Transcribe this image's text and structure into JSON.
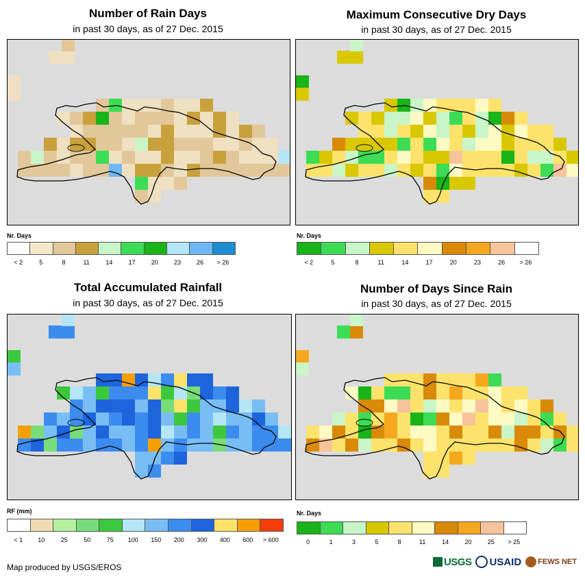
{
  "panels": [
    {
      "title": "Number of Rain Days",
      "subtitle": "in past 30 days, as of 27 Dec. 2015",
      "legend_title": "Nr. Days",
      "legend_colors": [
        "#ffffff",
        "#f5e6cc",
        "#e0c89a",
        "#c9a13c",
        "#c9f5c8",
        "#3cdc55",
        "#18b418",
        "#b4e6f5",
        "#6eb9f5",
        "#1e8cd2"
      ],
      "legend_labels": [
        "< 2",
        "5",
        "8",
        "11",
        "14",
        "17",
        "20",
        "23",
        "26",
        "> 26"
      ],
      "legend_label_mode": "center",
      "palette": [
        "#efe0c2",
        "#e2c79a",
        "#c9a13c",
        "#c9f5c8",
        "#3cdc55",
        "#18b418",
        "#b4e6f5",
        "#6eb9f5"
      ],
      "seed": 11,
      "weights": [
        40,
        35,
        10,
        3,
        4,
        2,
        2,
        2
      ]
    },
    {
      "title": "Maximum Consecutive Dry Days",
      "subtitle": "in past 30 days, as of 27 Dec. 2015",
      "legend_title": "Nr. Days",
      "legend_colors": [
        "#18b418",
        "#3cdc55",
        "#c9f5c8",
        "#d9c800",
        "#fde36b",
        "#fefac4",
        "#d98a08",
        "#f5a81e",
        "#f7c39c",
        "#ffffff"
      ],
      "legend_labels": [
        "< 2",
        "5",
        "8",
        "11",
        "14",
        "17",
        "20",
        "23",
        "26",
        "> 26"
      ],
      "legend_label_mode": "center",
      "palette": [
        "#d9c800",
        "#fde36b",
        "#fefac4",
        "#c9f5c8",
        "#3cdc55",
        "#18b418",
        "#d98a08",
        "#f7c39c"
      ],
      "seed": 23,
      "weights": [
        30,
        30,
        10,
        12,
        6,
        3,
        3,
        2
      ]
    },
    {
      "title": "Total Accumulated Rainfall",
      "subtitle": "in past 30 days, as of 27 Dec. 2015",
      "legend_title": "RF (mm)",
      "legend_colors": [
        "#ffffff",
        "#f0dcb4",
        "#b4f0a0",
        "#78dc78",
        "#3cc83c",
        "#b4e6f5",
        "#78bef5",
        "#3c8cf0",
        "#1e64dc",
        "#fde36b",
        "#f5a000",
        "#f53c0a"
      ],
      "legend_labels": [
        "< 1",
        "10",
        "25",
        "50",
        "75",
        "100",
        "150",
        "200",
        "300",
        "400",
        "600",
        "> 600"
      ],
      "legend_label_mode": "edge",
      "palette": [
        "#78bef5",
        "#3c8cf0",
        "#1e64dc",
        "#b4e6f5",
        "#3cc83c",
        "#78dc78",
        "#fde36b",
        "#f5a000"
      ],
      "seed": 37,
      "weights": [
        35,
        25,
        15,
        10,
        6,
        4,
        3,
        2
      ]
    },
    {
      "title": "Number of Days Since Rain",
      "subtitle": "in past 30 days, as of 27 Dec. 2015",
      "legend_title": "Nr. Days",
      "legend_colors": [
        "#18b418",
        "#3cdc55",
        "#c9f5c8",
        "#d9c800",
        "#fde36b",
        "#fefac4",
        "#d98a08",
        "#f5a81e",
        "#f7c39c",
        "#ffffff"
      ],
      "legend_labels": [
        "0",
        "1",
        "3",
        "5",
        "8",
        "11",
        "14",
        "20",
        "25",
        "> 25"
      ],
      "legend_label_mode": "edge",
      "palette": [
        "#fde36b",
        "#fefac4",
        "#d98a08",
        "#f5a81e",
        "#c9f5c8",
        "#3cdc55",
        "#18b418",
        "#f7c39c"
      ],
      "seed": 51,
      "weights": [
        45,
        12,
        14,
        6,
        5,
        4,
        3,
        2
      ]
    }
  ],
  "footer": {
    "credit": "Map produced by USGS/EROS"
  },
  "logos": {
    "usgs": "USGS",
    "usaid": "USAID",
    "fews": "FEWS NET"
  }
}
